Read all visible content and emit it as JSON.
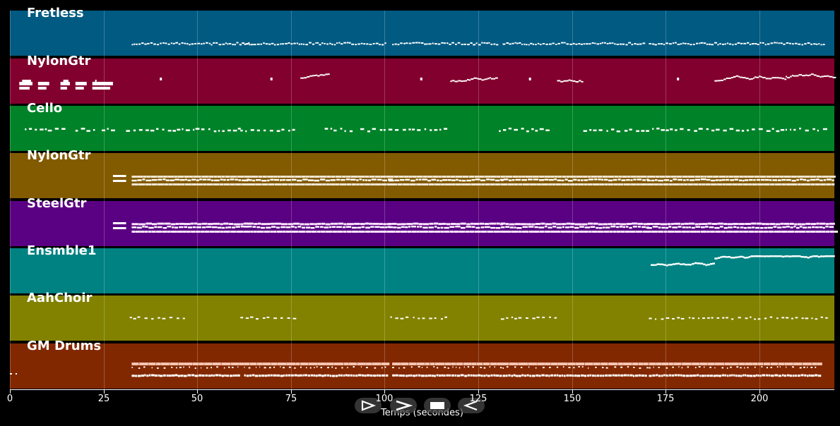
{
  "tracks": [
    {
      "name": "Fretless",
      "color": "#005a82"
    },
    {
      "name": "NylonGtr",
      "color": "#82002d"
    },
    {
      "name": "Cello",
      "color": "#008228"
    },
    {
      "name": "NylonGtr",
      "color": "#825a00"
    },
    {
      "name": "SteelGtr",
      "color": "#5a0082"
    },
    {
      "name": "Ensmble1",
      "color": "#008282"
    },
    {
      "name": "AahChoir",
      "color": "#828200"
    },
    {
      "name": "GM Drums",
      "color": "#822800"
    }
  ],
  "axis": {
    "label": "Temps (secondes)",
    "ticks": [
      "0",
      "25",
      "50",
      "75",
      "100",
      "125",
      "150",
      "175",
      "200"
    ],
    "range_seconds": [
      0,
      220
    ]
  },
  "controls": [
    {
      "icon": "play-icon"
    },
    {
      "icon": "fast-forward-icon"
    },
    {
      "icon": "stop-icon"
    },
    {
      "icon": "rewind-icon"
    }
  ]
}
